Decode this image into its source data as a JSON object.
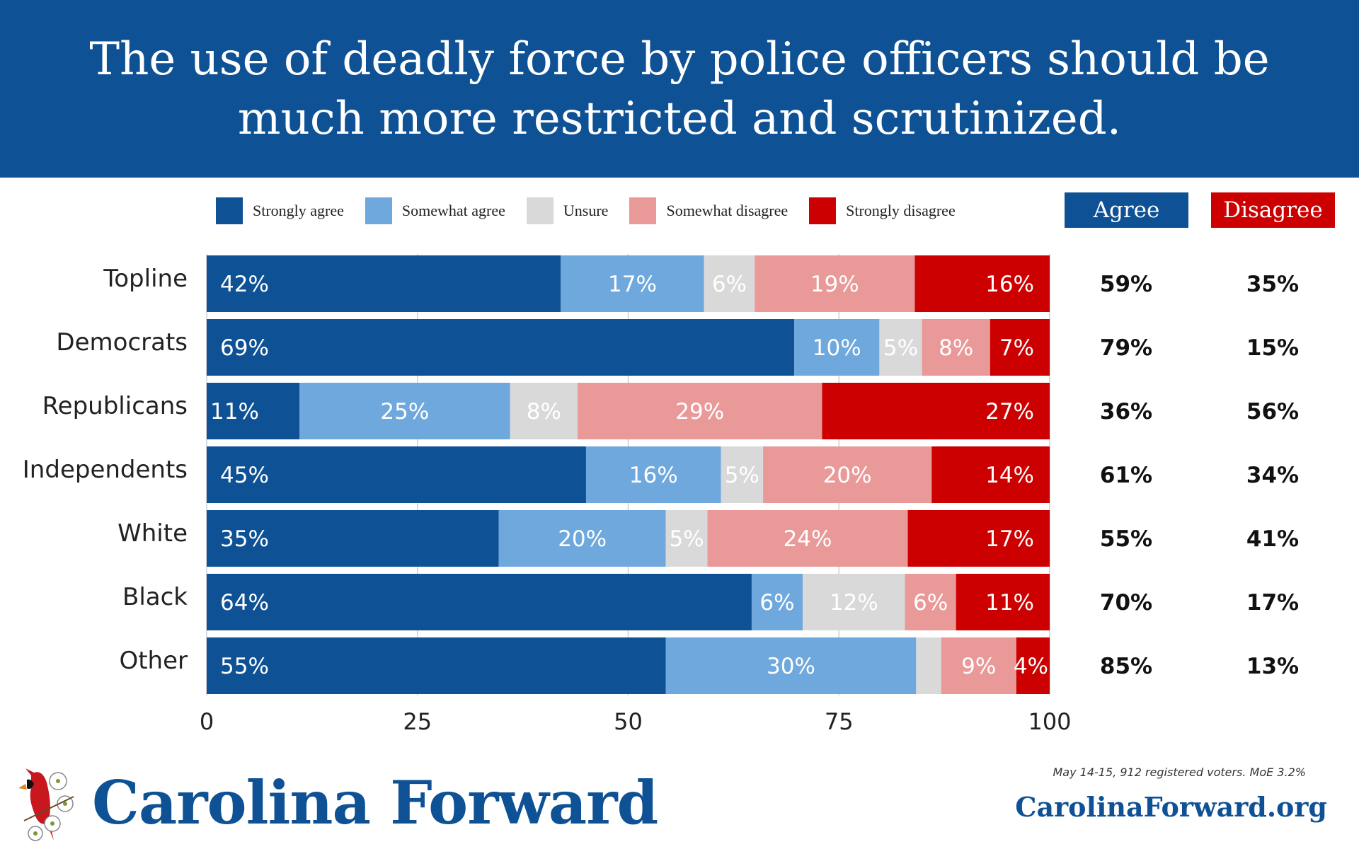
{
  "colors": {
    "strongly_agree": "#0e5194",
    "somewhat_agree": "#6fa8dc",
    "unsure": "#d9d9d9",
    "somewhat_disagree": "#ea9999",
    "strongly_disagree": "#cc0000",
    "brand": "#0e5194"
  },
  "legend": [
    {
      "label": "Strongly agree",
      "key": "strongly_agree"
    },
    {
      "label": "Somewhat agree",
      "key": "somewhat_agree"
    },
    {
      "label": "Unsure",
      "key": "unsure"
    },
    {
      "label": "Somewhat disagree",
      "key": "somewhat_disagree"
    },
    {
      "label": "Strongly disagree",
      "key": "strongly_disagree"
    }
  ],
  "summary_headers": {
    "agree": "Agree",
    "disagree": "Disagree"
  },
  "chart_data": {
    "type": "bar",
    "orientation": "horizontal",
    "stacked": true,
    "title": "The use of deadly force by police officers should be much more restricted and scrutinized.",
    "xlabel": "",
    "ylabel": "",
    "xlim": [
      0,
      100
    ],
    "x_ticks": [
      "0",
      "25",
      "50",
      "75",
      "100"
    ],
    "grid": true,
    "legend_position": "top",
    "categories": [
      "Topline",
      "Democrats",
      "Republicans",
      "Independents",
      "White",
      "Black",
      "Other"
    ],
    "series": [
      {
        "name": "Strongly agree",
        "values": [
          42,
          69,
          11,
          45,
          35,
          64,
          55
        ],
        "labels": [
          "42%",
          "69%",
          "11%",
          "45%",
          "35%",
          "64%",
          "55%"
        ]
      },
      {
        "name": "Somewhat agree",
        "values": [
          17,
          10,
          25,
          16,
          20,
          6,
          30
        ],
        "labels": [
          "17%",
          "10%",
          "25%",
          "16%",
          "20%",
          "6%",
          "30%"
        ]
      },
      {
        "name": "Unsure",
        "values": [
          6,
          5,
          8,
          5,
          5,
          12,
          3
        ],
        "labels": [
          "6%",
          "5%",
          "8%",
          "5%",
          "5%",
          "12%",
          ""
        ]
      },
      {
        "name": "Somewhat disagree",
        "values": [
          19,
          8,
          29,
          20,
          24,
          6,
          9
        ],
        "labels": [
          "19%",
          "8%",
          "29%",
          "20%",
          "24%",
          "6%",
          "9%"
        ]
      },
      {
        "name": "Strongly disagree",
        "values": [
          16,
          7,
          27,
          14,
          17,
          11,
          4
        ],
        "labels": [
          "16%",
          "7%",
          "27%",
          "14%",
          "17%",
          "11%",
          "4%"
        ]
      }
    ],
    "agree_totals": [
      "59%",
      "79%",
      "36%",
      "61%",
      "55%",
      "70%",
      "85%"
    ],
    "disagree_totals": [
      "35%",
      "15%",
      "56%",
      "34%",
      "41%",
      "17%",
      "13%"
    ]
  },
  "footer": {
    "brand_name": "Carolina Forward",
    "logo_icon": "cardinal-dogwood-icon",
    "note": "May 14-15, 912 registered voters. MoE 3.2%",
    "website": "CarolinaForward.org"
  }
}
